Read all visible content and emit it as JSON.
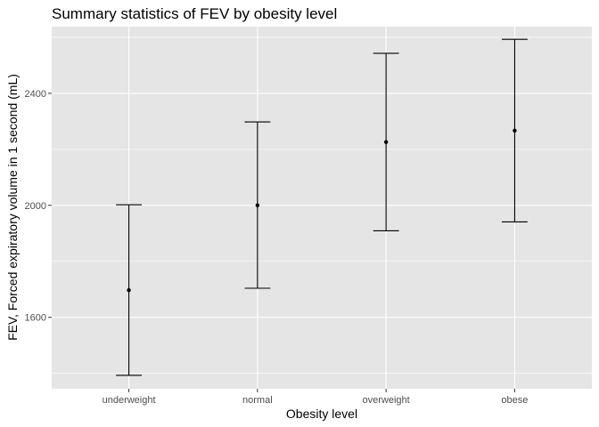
{
  "chart_data": {
    "type": "errorbar",
    "title": "Summary statistics of FEV by obesity level",
    "xlabel": "Obesity level",
    "ylabel": "FEV, Forced expiratory volume in 1 second (mL)",
    "categories": [
      "underweight",
      "normal",
      "overweight",
      "obese"
    ],
    "series": [
      {
        "mean": [
          1697,
          2000,
          2226,
          2267
        ],
        "lower": [
          1393,
          1704,
          1909,
          1941
        ],
        "upper": [
          2002,
          2298,
          2543,
          2593
        ]
      }
    ],
    "yticks": [
      1600,
      2000,
      2400
    ],
    "ylim": [
      1345,
      2638
    ],
    "grid": true,
    "colors": {
      "panel": "#e5e5e5",
      "grid": "#ffffff",
      "marks": "#000000"
    }
  }
}
